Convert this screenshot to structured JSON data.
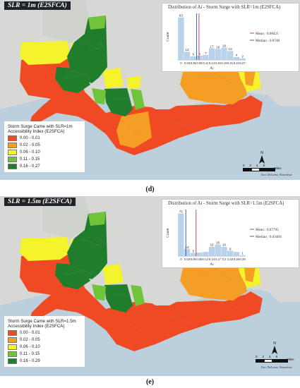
{
  "panels": [
    {
      "id": "d",
      "title": "SLR = 1m (E2SFCA)",
      "hist": {
        "title": "Distribution of Ai - Storm Surge with SLR=1m (E2SFCA)",
        "ylabel": "Count",
        "xlabel": "Ai",
        "bars": [
          63,
          12,
          5,
          6,
          7,
          17,
          16,
          18,
          13,
          4,
          2
        ],
        "bar_labels": [
          "63",
          "12",
          "5",
          "6",
          "7",
          "17",
          "16",
          "18",
          "13",
          "4",
          "2"
        ],
        "ticks": [
          "0",
          "0.03",
          "0.05",
          "0.08",
          "0.11",
          "0.13",
          "0.16",
          "0.19",
          "0.21",
          "0.24",
          "0.27"
        ],
        "xmax": 0.27,
        "mean": 0.08421,
        "median": 0.0748,
        "mean_label": "Mean : 0.08421",
        "median_label": "Median : 0.0748"
      },
      "legend": {
        "title1": "Storm Surge Came with SLR=1m",
        "title2": "Accessibility Index (E2SFCA)",
        "items": [
          {
            "label": "0.00 - 0.01",
            "color": "#f04a25"
          },
          {
            "label": "0.02 - 0.05",
            "color": "#f59e26"
          },
          {
            "label": "0.06 - 0.10",
            "color": "#f4f32c"
          },
          {
            "label": "0.11 - 0.15",
            "color": "#6fc43a"
          },
          {
            "label": "0.16 - 0.27",
            "color": "#1f7d2c"
          }
        ]
      },
      "north": "N",
      "scale": {
        "ticks": [
          "0",
          "2",
          "4",
          "8"
        ],
        "unit": "Miles"
      },
      "credit": "Esri, DeLorme, Naturalvue",
      "caption": "(d)"
    },
    {
      "id": "e",
      "title": "SLR = 1.5m (E2SFCA)",
      "hist": {
        "title": "Distribution of Ai - Storm Surge with SLR=1.5m (E2SFCA)",
        "ylabel": "Count",
        "xlabel": "Ai",
        "bars": [
          75,
          12,
          5,
          6,
          7,
          16,
          20,
          16,
          9,
          7,
          1
        ],
        "bar_labels": [
          "75",
          "12",
          "5",
          "",
          "",
          "16",
          "20",
          "16",
          "9",
          "",
          "1"
        ],
        "ticks": [
          "0",
          "0.03",
          "0.06",
          "0.09",
          "0.12",
          "0.14",
          "0.17",
          "0.2",
          "0.23",
          "0.26",
          "0.29"
        ],
        "xmax": 0.29,
        "mean": 0.07795,
        "median": 0.03404,
        "mean_label": "Mean : 0.07795",
        "median_label": "Median : 0.03404"
      },
      "legend": {
        "title1": "Storm Surge Came with SLR=1.5m",
        "title2": "Accessibility Index (E2SFCA)",
        "items": [
          {
            "label": "0.00 - 0.01",
            "color": "#f04a25"
          },
          {
            "label": "0.02 - 0.05",
            "color": "#f59e26"
          },
          {
            "label": "0.06 - 0.10",
            "color": "#f4f32c"
          },
          {
            "label": "0.11 - 0.15",
            "color": "#6fc43a"
          },
          {
            "label": "0.16 - 0.29",
            "color": "#1f7d2c"
          }
        ]
      },
      "north": "N",
      "scale": {
        "ticks": [
          "0",
          "2",
          "4",
          "8"
        ],
        "unit": "Miles"
      },
      "credit": "Esri, DeLorme, Naturalvue",
      "caption": "(e)"
    }
  ],
  "colors": {
    "water": "#bccfdd",
    "land": "#d8d8d8",
    "bar": "#b9d3ea",
    "mean_line": "#c0392b",
    "median_line": "#2c4ea8"
  }
}
